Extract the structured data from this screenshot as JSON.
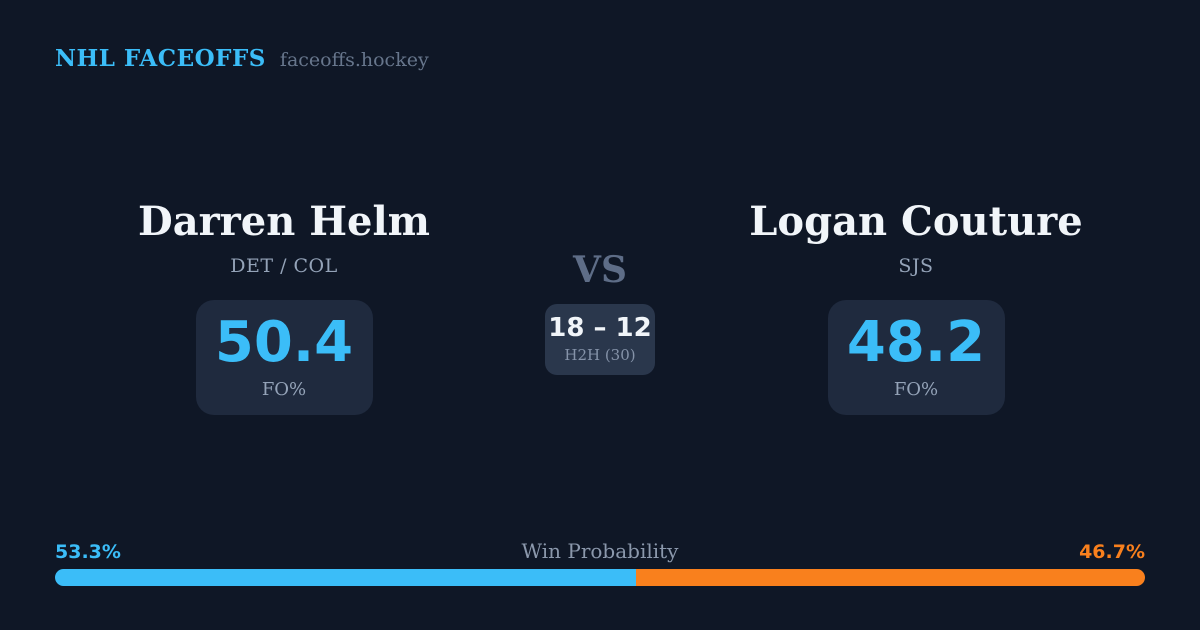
{
  "header": {
    "brand": "NHL FACEOFFS",
    "domain": "faceoffs.hockey"
  },
  "players": {
    "left": {
      "name": "Darren Helm",
      "teams": "DET / COL",
      "stat_value": "50.4",
      "stat_label": "FO%"
    },
    "right": {
      "name": "Logan Couture",
      "teams": "SJS",
      "stat_value": "48.2",
      "stat_label": "FO%"
    }
  },
  "versus": {
    "label": "VS",
    "h2h_score": "18 – 12",
    "h2h_label": "H2H (30)"
  },
  "win_probability": {
    "title": "Win Probability",
    "left_label": "53.3%",
    "right_label": "46.7%",
    "left_pct": 53.3,
    "right_pct": 46.7
  },
  "colors": {
    "background": "#0f1726",
    "stat_card": "#1f2a3e",
    "h2h_card": "#2a374c",
    "accent_blue": "#3bbdf8",
    "accent_orange": "#f9801d",
    "text_white": "#f1f5f9",
    "text_gray": "#94a3b8",
    "vs_gray": "#5e6d87"
  },
  "chart_data": {
    "type": "bar",
    "title": "Win Probability",
    "categories": [
      "Darren Helm",
      "Logan Couture"
    ],
    "values": [
      53.3,
      46.7
    ],
    "unit": "%",
    "colors": [
      "#3bbdf8",
      "#f9801d"
    ],
    "related_stats": {
      "faceoff_pct": {
        "Darren Helm": 50.4,
        "Logan Couture": 48.2
      },
      "head_to_head": {
        "Darren Helm_wins": 18,
        "Logan Couture_wins": 12,
        "total": 30
      }
    },
    "legend_position": "none",
    "grid": false,
    "xlim": [
      0,
      100
    ]
  }
}
